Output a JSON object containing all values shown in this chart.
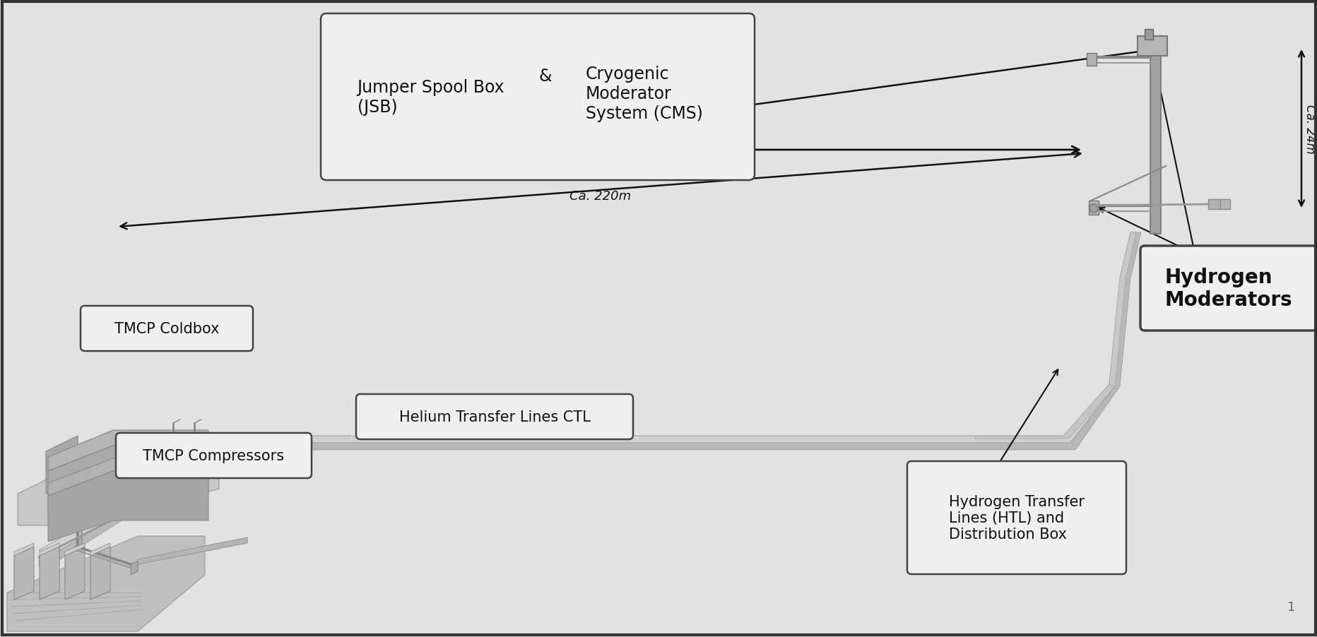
{
  "bg_color": "#e2e2e2",
  "content_bg": "#ebebeb",
  "box_bg": "#f0f0f0",
  "box_edge": "#444444",
  "text_color": "#111111",
  "line_color": "#111111",
  "structure_dark": "#888888",
  "structure_mid": "#b0b0b0",
  "structure_light": "#d5d5d5",
  "structure_lighter": "#e5e5e5",
  "jsb_left": "Jumper Spool Box\n(JSB)",
  "jsb_amp": "&",
  "jsb_right": "Cryogenic\nModerator\nSystem (CMS)",
  "ca_220m": "Ca. 220m",
  "ca_24m": "Ca. 24m",
  "tmcp_coldbox": "TMCP Coldbox",
  "tmcp_compressors": "TMCP Compressors",
  "helium_ctl": "Helium Transfer Lines CTL",
  "hydrogen_moderators": "Hydrogen\nModerators",
  "hydrogen_htl": "Hydrogen Transfer\nLines (HTL) and\nDistribution Box",
  "page_num": "1",
  "fw": 18.65,
  "fh": 9.03,
  "dpi": 100
}
